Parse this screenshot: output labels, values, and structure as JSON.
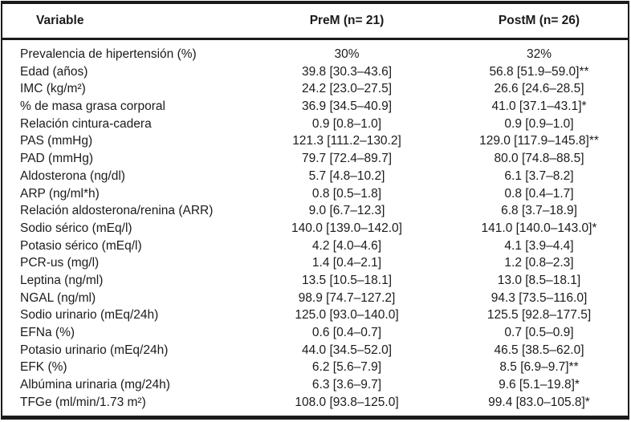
{
  "table": {
    "columns": [
      "Variable",
      "PreM (n= 21)",
      "PostM (n= 26)"
    ],
    "rows": [
      {
        "variable": "Prevalencia de hipertensión (%)",
        "prem": "30%",
        "postm": "32%"
      },
      {
        "variable": "Edad (años)",
        "prem": "39.8 [30.3–43.6]",
        "postm": "56.8 [51.9–59.0]**"
      },
      {
        "variable": "IMC (kg/m²)",
        "prem": "24.2 [23.0–27.5]",
        "postm": "26.6 [24.6–28.5]"
      },
      {
        "variable": "% de masa grasa corporal",
        "prem": "36.9 [34.5–40.9]",
        "postm": "41.0 [37.1–43.1]*"
      },
      {
        "variable": "Relación cintura-cadera",
        "prem": "0.9 [0.8–1.0]",
        "postm": "0.9 [0.9–1.0]"
      },
      {
        "variable": "PAS (mmHg)",
        "prem": "121.3 [111.2–130.2]",
        "postm": "129.0 [117.9–145.8]**"
      },
      {
        "variable": "PAD (mmHg)",
        "prem": "79.7 [72.4–89.7]",
        "postm": "80.0 [74.8–88.5]"
      },
      {
        "variable": "Aldosterona (ng/dl)",
        "prem": "5.7 [4.8–10.2]",
        "postm": "6.1 [3.7–8.2]"
      },
      {
        "variable": "ARP (ng/ml*h)",
        "prem": "0.8 [0.5–1.8]",
        "postm": "0.8 [0.4–1.7]"
      },
      {
        "variable": "Relación aldosterona/renina (ARR)",
        "prem": "9.0 [6.7–12.3]",
        "postm": "6.8 [3.7–18.9]"
      },
      {
        "variable": "Sodio sérico (mEq/l)",
        "prem": "140.0 [139.0–142.0]",
        "postm": "141.0 [140.0–143.0]*"
      },
      {
        "variable": "Potasio sérico (mEq/l)",
        "prem": "4.2 [4.0–4.6]",
        "postm": "4.1 [3.9–4.4]"
      },
      {
        "variable": "PCR-us (mg/l)",
        "prem": "1.4 [0.4–2.1]",
        "postm": "1.2 [0.8–2.3]"
      },
      {
        "variable": "Leptina (ng/ml)",
        "prem": "13.5 [10.5–18.1]",
        "postm": "13.0 [8.5–18.1]"
      },
      {
        "variable": "NGAL (ng/ml)",
        "prem": "98.9 [74.7–127.2]",
        "postm": "94.3 [73.5–116.0]"
      },
      {
        "variable": "Sodio urinario (mEq/24h)",
        "prem": "125.0 [93.0–140.0]",
        "postm": "125.5 [92.8–177.5]"
      },
      {
        "variable": "EFNa (%)",
        "prem": "0.6 [0.4–0.7]",
        "postm": "0.7 [0.5–0.9]"
      },
      {
        "variable": "Potasio urinario (mEq/24h)",
        "prem": "44.0 [34.5–52.0]",
        "postm": "46.5 [38.5–62.0]"
      },
      {
        "variable": "EFK (%)",
        "prem": "6.2 [5.6–7.9]",
        "postm": "8.5 [6.9–9.7]**"
      },
      {
        "variable": "Albúmina urinaria (mg/24h)",
        "prem": "6.3 [3.6–9.7]",
        "postm": "9.6 [5.1–19.8]*"
      },
      {
        "variable": "TFGe (ml/min/1.73 m²)",
        "prem": "108.0 [93.8–125.0]",
        "postm": "99.4 [83.0–105.8]*"
      }
    ]
  }
}
